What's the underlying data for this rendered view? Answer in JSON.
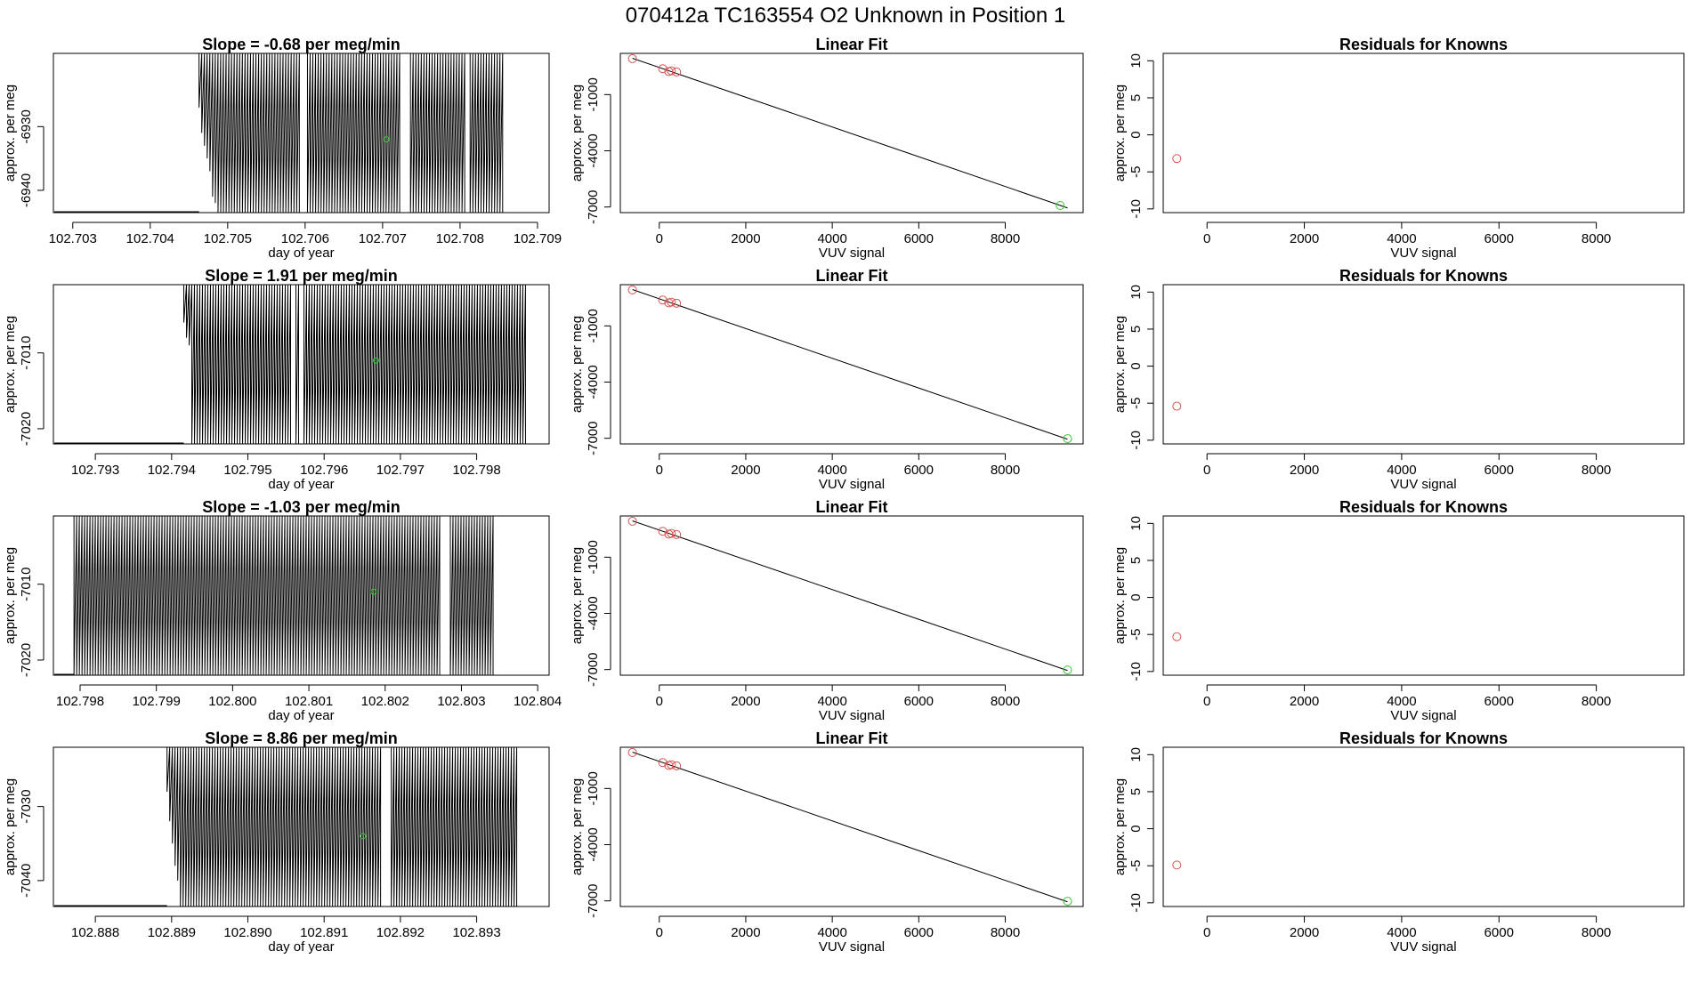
{
  "page_title": "070412a      TC163554   O2 Unknown in Position  1",
  "colors": {
    "axis": "#000000",
    "trace": "#000000",
    "known": "#d9534f",
    "unknown": "#33cc33"
  },
  "chart_data": [
    {
      "type": "line",
      "kind": "trace",
      "row": 0,
      "title": "Slope =  -0.68  per meg/min",
      "xlabel": "day of year",
      "ylabel": "approx. per meg",
      "xlim": [
        102.70275,
        102.70915
      ],
      "ylim": [
        -6943.5,
        -6918.5
      ],
      "x_ticks": [
        102.703,
        102.704,
        102.705,
        102.706,
        102.707,
        102.708,
        102.709
      ],
      "x_tick_labels": [
        "102.703",
        "102.704",
        "102.705",
        "102.706",
        "102.707",
        "102.708",
        "102.709"
      ],
      "y_ticks": [
        -6930,
        -6940
      ],
      "y_tick_labels": [
        "-6930",
        "-6940"
      ],
      "trace_start": 102.70463,
      "trace_end": 102.70855,
      "trace_spacing": 3.5e-05,
      "trace_gaps": [
        [
          102.70593,
          102.70602
        ],
        [
          102.70725,
          102.70735
        ],
        [
          102.70808,
          102.70812
        ]
      ],
      "trace_lowest": -6943.5,
      "trace_initial_dips": [
        -6927,
        -6931,
        -6933,
        -6935,
        -6937,
        -6941,
        -6942
      ],
      "unknown_marker": {
        "x": 102.70705,
        "y": -6932
      }
    },
    {
      "type": "line",
      "kind": "fit",
      "row": 0,
      "title": "Linear Fit",
      "xlabel": "VUV signal",
      "ylabel": "approx. per meg",
      "xlim": [
        -900,
        9800
      ],
      "ylim": [
        -7300,
        1200
      ],
      "x_ticks": [
        0,
        2000,
        4000,
        6000,
        8000
      ],
      "x_tick_labels": [
        "0",
        "2000",
        "4000",
        "6000",
        "8000"
      ],
      "y_ticks": [
        -1000,
        -4000,
        -7000
      ],
      "y_tick_labels": [
        "-1000",
        "-4000",
        "-7000"
      ],
      "fit_line": {
        "x": [
          -620,
          9440
        ],
        "y": [
          940,
          -7050
        ]
      },
      "knowns": [
        {
          "x": -620,
          "y": 920
        },
        {
          "x": 80,
          "y": 380
        },
        {
          "x": 220,
          "y": 230
        },
        {
          "x": 280,
          "y": 270
        },
        {
          "x": 400,
          "y": 210
        }
      ],
      "unknown": {
        "x": 9270,
        "y": -6920
      }
    },
    {
      "type": "scatter",
      "kind": "residuals",
      "row": 0,
      "title": "Residuals for Knowns",
      "xlabel": "VUV signal",
      "ylabel": "approx. per meg",
      "xlim": [
        -900,
        9800
      ],
      "ylim": [
        -10.5,
        11
      ],
      "x_ticks": [
        0,
        2000,
        4000,
        6000,
        8000
      ],
      "x_tick_labels": [
        "0",
        "2000",
        "4000",
        "6000",
        "8000"
      ],
      "y_ticks": [
        10,
        5,
        0,
        -5,
        -10
      ],
      "y_tick_labels": [
        "10",
        "5",
        "0",
        "-5",
        "-10"
      ],
      "points": [
        {
          "x": -620,
          "y": -3.2
        }
      ]
    },
    {
      "type": "line",
      "kind": "trace",
      "row": 1,
      "title": "Slope =  1.91  per meg/min",
      "xlabel": "day of year",
      "ylabel": "approx. per meg",
      "xlim": [
        102.79245,
        102.79895
      ],
      "ylim": [
        -7022,
        -7001
      ],
      "x_ticks": [
        102.793,
        102.794,
        102.795,
        102.796,
        102.797,
        102.798
      ],
      "x_tick_labels": [
        "102.793",
        "102.794",
        "102.795",
        "102.796",
        "102.797",
        "102.798"
      ],
      "y_ticks": [
        -7010,
        -7020
      ],
      "y_tick_labels": [
        "-7010",
        "-7020"
      ],
      "trace_start": 102.79416,
      "trace_end": 102.79865,
      "trace_spacing": 3.5e-05,
      "trace_gaps": [
        [
          102.79556,
          102.79562
        ],
        [
          102.79567,
          102.79573
        ]
      ],
      "trace_lowest": -7022,
      "trace_initial_dips": [
        -7006,
        -7008,
        -7009
      ],
      "unknown_marker": {
        "x": 102.79668,
        "y": -7011
      }
    },
    {
      "type": "line",
      "kind": "fit",
      "row": 1,
      "title": "Linear Fit",
      "xlabel": "VUV signal",
      "ylabel": "approx. per meg",
      "xlim": [
        -900,
        9800
      ],
      "ylim": [
        -7300,
        1200
      ],
      "x_ticks": [
        0,
        2000,
        4000,
        6000,
        8000
      ],
      "x_tick_labels": [
        "0",
        "2000",
        "4000",
        "6000",
        "8000"
      ],
      "y_ticks": [
        -1000,
        -4000,
        -7000
      ],
      "y_tick_labels": [
        "-1000",
        "-4000",
        "-7000"
      ],
      "fit_line": {
        "x": [
          -620,
          9440
        ],
        "y": [
          940,
          -7050
        ]
      },
      "knowns": [
        {
          "x": -620,
          "y": 920
        },
        {
          "x": 80,
          "y": 380
        },
        {
          "x": 220,
          "y": 230
        },
        {
          "x": 280,
          "y": 270
        },
        {
          "x": 400,
          "y": 210
        }
      ],
      "unknown": {
        "x": 9440,
        "y": -7020
      }
    },
    {
      "type": "scatter",
      "kind": "residuals",
      "row": 1,
      "title": "Residuals for Knowns",
      "xlabel": "VUV signal",
      "ylabel": "approx. per meg",
      "xlim": [
        -900,
        9800
      ],
      "ylim": [
        -10.5,
        11
      ],
      "x_ticks": [
        0,
        2000,
        4000,
        6000,
        8000
      ],
      "x_tick_labels": [
        "0",
        "2000",
        "4000",
        "6000",
        "8000"
      ],
      "y_ticks": [
        10,
        5,
        0,
        -5,
        -10
      ],
      "y_tick_labels": [
        "10",
        "5",
        "0",
        "-5",
        "-10"
      ],
      "points": [
        {
          "x": -620,
          "y": -5.4
        }
      ]
    },
    {
      "type": "line",
      "kind": "trace",
      "row": 2,
      "title": "Slope =  -1.03  per meg/min",
      "xlabel": "day of year",
      "ylabel": "approx. per meg",
      "xlim": [
        102.79765,
        102.80415
      ],
      "ylim": [
        -7022,
        -7001
      ],
      "x_ticks": [
        102.798,
        102.799,
        102.8,
        102.801,
        102.802,
        102.803,
        102.804
      ],
      "x_tick_labels": [
        "102.798",
        "102.799",
        "102.800",
        "102.801",
        "102.802",
        "102.803",
        "102.804"
      ],
      "y_ticks": [
        -7010,
        -7020
      ],
      "y_tick_labels": [
        "-7010",
        "-7020"
      ],
      "trace_start": 102.79792,
      "trace_end": 102.80343,
      "trace_spacing": 3.5e-05,
      "trace_gaps": [
        [
          102.80273,
          102.80283
        ]
      ],
      "trace_lowest": -7022,
      "trace_initial_dips": [],
      "unknown_marker": {
        "x": 102.80185,
        "y": -7011
      }
    },
    {
      "type": "line",
      "kind": "fit",
      "row": 2,
      "title": "Linear Fit",
      "xlabel": "VUV signal",
      "ylabel": "approx. per meg",
      "xlim": [
        -900,
        9800
      ],
      "ylim": [
        -7300,
        1200
      ],
      "x_ticks": [
        0,
        2000,
        4000,
        6000,
        8000
      ],
      "x_tick_labels": [
        "0",
        "2000",
        "4000",
        "6000",
        "8000"
      ],
      "y_ticks": [
        -1000,
        -4000,
        -7000
      ],
      "y_tick_labels": [
        "-1000",
        "-4000",
        "-7000"
      ],
      "fit_line": {
        "x": [
          -620,
          9440
        ],
        "y": [
          940,
          -7050
        ]
      },
      "knowns": [
        {
          "x": -620,
          "y": 920
        },
        {
          "x": 80,
          "y": 380
        },
        {
          "x": 220,
          "y": 230
        },
        {
          "x": 280,
          "y": 270
        },
        {
          "x": 400,
          "y": 210
        }
      ],
      "unknown": {
        "x": 9440,
        "y": -7020
      }
    },
    {
      "type": "scatter",
      "kind": "residuals",
      "row": 2,
      "title": "Residuals for Knowns",
      "xlabel": "VUV signal",
      "ylabel": "approx. per meg",
      "xlim": [
        -900,
        9800
      ],
      "ylim": [
        -10.5,
        11
      ],
      "x_ticks": [
        0,
        2000,
        4000,
        6000,
        8000
      ],
      "x_tick_labels": [
        "0",
        "2000",
        "4000",
        "6000",
        "8000"
      ],
      "y_ticks": [
        10,
        5,
        0,
        -5,
        -10
      ],
      "y_tick_labels": [
        "10",
        "5",
        "0",
        "-5",
        "-10"
      ],
      "points": [
        {
          "x": -620,
          "y": -5.3
        }
      ]
    },
    {
      "type": "line",
      "kind": "trace",
      "row": 3,
      "title": "Slope =  8.86  per meg/min",
      "xlabel": "day of year",
      "ylabel": "approx. per meg",
      "xlim": [
        102.88745,
        102.89395
      ],
      "ylim": [
        -7043.5,
        -7022
      ],
      "x_ticks": [
        102.888,
        102.889,
        102.89,
        102.891,
        102.892,
        102.893
      ],
      "x_tick_labels": [
        "102.888",
        "102.889",
        "102.890",
        "102.891",
        "102.892",
        "102.893"
      ],
      "y_ticks": [
        -7030,
        -7040
      ],
      "y_tick_labels": [
        "-7030",
        "-7040"
      ],
      "trace_start": 102.88894,
      "trace_end": 102.89354,
      "trace_spacing": 3.5e-05,
      "trace_gaps": [
        [
          102.89174,
          102.89186
        ]
      ],
      "trace_lowest": -7043.5,
      "trace_initial_dips": [
        -7028,
        -7032,
        -7035,
        -7038,
        -7040
      ],
      "unknown_marker": {
        "x": 102.89151,
        "y": -7034
      }
    },
    {
      "type": "line",
      "kind": "fit",
      "row": 3,
      "title": "Linear Fit",
      "xlabel": "VUV signal",
      "ylabel": "approx. per meg",
      "xlim": [
        -900,
        9800
      ],
      "ylim": [
        -7300,
        1200
      ],
      "x_ticks": [
        0,
        2000,
        4000,
        6000,
        8000
      ],
      "x_tick_labels": [
        "0",
        "2000",
        "4000",
        "6000",
        "8000"
      ],
      "y_ticks": [
        -1000,
        -4000,
        -7000
      ],
      "y_tick_labels": [
        "-1000",
        "-4000",
        "-7000"
      ],
      "fit_line": {
        "x": [
          -620,
          9440
        ],
        "y": [
          940,
          -7050
        ]
      },
      "knowns": [
        {
          "x": -620,
          "y": 920
        },
        {
          "x": 80,
          "y": 380
        },
        {
          "x": 220,
          "y": 230
        },
        {
          "x": 280,
          "y": 270
        },
        {
          "x": 400,
          "y": 210
        }
      ],
      "unknown": {
        "x": 9440,
        "y": -7020
      }
    },
    {
      "type": "scatter",
      "kind": "residuals",
      "row": 3,
      "title": "Residuals for Knowns",
      "xlabel": "VUV signal",
      "ylabel": "approx. per meg",
      "xlim": [
        -900,
        9800
      ],
      "ylim": [
        -10.5,
        11
      ],
      "x_ticks": [
        0,
        2000,
        4000,
        6000,
        8000
      ],
      "x_tick_labels": [
        "0",
        "2000",
        "4000",
        "6000",
        "8000"
      ],
      "y_ticks": [
        10,
        5,
        0,
        -5,
        -10
      ],
      "y_tick_labels": [
        "10",
        "5",
        "0",
        "-5",
        "-10"
      ],
      "points": [
        {
          "x": -620,
          "y": -4.9
        }
      ]
    }
  ]
}
